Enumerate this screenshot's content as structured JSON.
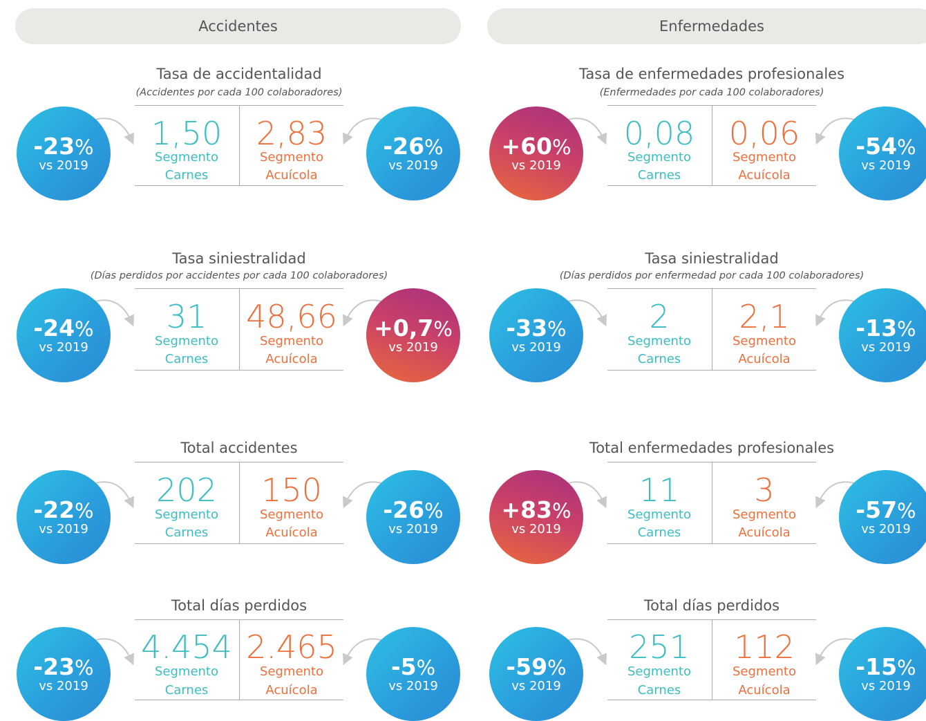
{
  "columns": [
    {
      "header": "Accidentes",
      "sections": [
        {
          "title": "Tasa de accidentalidad",
          "subtitle": "(Accidentes por cada 100 colaboradores)",
          "carnes": {
            "value": "1,50",
            "segment": "Segmento",
            "name": "Carnes"
          },
          "acuicola": {
            "value": "2,83",
            "segment": "Segmento",
            "name": "Acuícola"
          },
          "badge_left": {
            "value": "-23",
            "unit": "%",
            "note": "vs 2019",
            "color": "#2a9fdc"
          },
          "badge_right": {
            "value": "-26",
            "unit": "%",
            "note": "vs 2019",
            "color": "#2a9fdc"
          }
        },
        {
          "title": "Tasa siniestralidad",
          "subtitle": "(Días perdidos por accidentes por cada 100 colaboradores)",
          "carnes": {
            "value": "31",
            "segment": "Segmento",
            "name": "Carnes"
          },
          "acuicola": {
            "value": "48,66",
            "segment": "Segmento",
            "name": "Acuícola"
          },
          "badge_left": {
            "value": "-24",
            "unit": "%",
            "note": "vs 2019",
            "color": "#2a9fdc"
          },
          "badge_right": {
            "value": "+0,7",
            "unit": "%",
            "note": "vs 2019",
            "color": "#c33c6e"
          }
        },
        {
          "title": "Total accidentes",
          "carnes": {
            "value": "202",
            "segment": "Segmento",
            "name": "Carnes"
          },
          "acuicola": {
            "value": "150",
            "segment": "Segmento",
            "name": "Acuícola"
          },
          "badge_left": {
            "value": "-22",
            "unit": "%",
            "note": "vs 2019",
            "color": "#2a9fdc"
          },
          "badge_right": {
            "value": "-26",
            "unit": "%",
            "note": "vs 2019",
            "color": "#2a9fdc"
          }
        },
        {
          "title": "Total días perdidos",
          "carnes": {
            "value": "4.454",
            "segment": "Segmento",
            "name": "Carnes"
          },
          "acuicola": {
            "value": "2.465",
            "segment": "Segmento",
            "name": "Acuícola"
          },
          "badge_left": {
            "value": "-23",
            "unit": "%",
            "note": "vs 2019",
            "color": "#2a9fdc"
          },
          "badge_right": {
            "value": "-5",
            "unit": "%",
            "note": "vs 2019",
            "color": "#2a9fdc"
          }
        }
      ]
    },
    {
      "header": "Enfermedades",
      "sections": [
        {
          "title": "Tasa de enfermedades profesionales",
          "subtitle": "(Enfermedades por cada 100 colaboradores)",
          "carnes": {
            "value": "0,08",
            "segment": "Segmento",
            "name": "Carnes"
          },
          "acuicola": {
            "value": "0,06",
            "segment": "Segmento",
            "name": "Acuícola"
          },
          "badge_left": {
            "value": "+60",
            "unit": "%",
            "note": "vs 2019",
            "color": "#c33c6e"
          },
          "badge_right": {
            "value": "-54",
            "unit": "%",
            "note": "vs 2019",
            "color": "#2a9fdc"
          }
        },
        {
          "title": "Tasa siniestralidad",
          "subtitle": "(Días perdidos por enfermedad por cada 100 colaboradores)",
          "carnes": {
            "value": "2",
            "segment": "Segmento",
            "name": "Carnes"
          },
          "acuicola": {
            "value": "2,1",
            "segment": "Segmento",
            "name": "Acuícola"
          },
          "badge_left": {
            "value": "-33",
            "unit": "%",
            "note": "vs 2019",
            "color": "#2a9fdc"
          },
          "badge_right": {
            "value": "-13",
            "unit": "%",
            "note": "vs 2019",
            "color": "#2a9fdc"
          }
        },
        {
          "title": "Total enfermedades profesionales",
          "carnes": {
            "value": "11",
            "segment": "Segmento",
            "name": "Carnes"
          },
          "acuicola": {
            "value": "3",
            "segment": "Segmento",
            "name": "Acuícola"
          },
          "badge_left": {
            "value": "+83",
            "unit": "%",
            "note": "vs 2019",
            "color": "#c33c6e"
          },
          "badge_right": {
            "value": "-57",
            "unit": "%",
            "note": "vs 2019",
            "color": "#2a9fdc"
          }
        },
        {
          "title": "Total días perdidos",
          "carnes": {
            "value": "251",
            "segment": "Segmento",
            "name": "Carnes"
          },
          "acuicola": {
            "value": "112",
            "segment": "Segmento",
            "name": "Acuícola"
          },
          "badge_left": {
            "value": "-59",
            "unit": "%",
            "note": "vs 2019",
            "color": "#2a9fdc"
          },
          "badge_right": {
            "value": "-15",
            "unit": "%",
            "note": "vs 2019",
            "color": "#2a9fdc"
          }
        }
      ]
    }
  ]
}
